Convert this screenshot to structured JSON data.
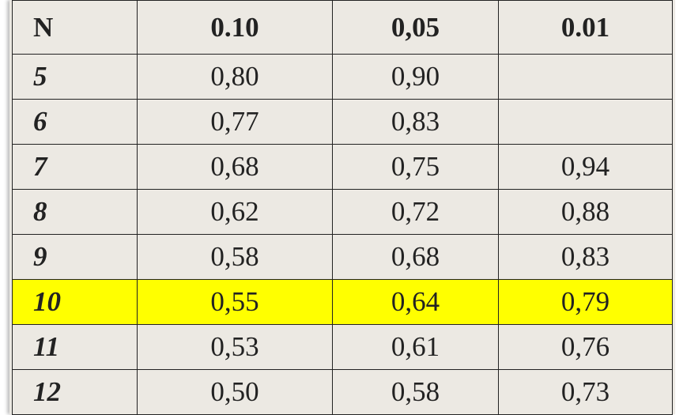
{
  "table": {
    "header": [
      "N",
      "0.10",
      "0,05",
      "0.01"
    ],
    "rows": [
      [
        "5",
        "0,80",
        "0,90",
        null
      ],
      [
        "6",
        "0,77",
        "0,83",
        null
      ],
      [
        "7",
        "0,68",
        "0,75",
        "0,94"
      ],
      [
        "8",
        "0,62",
        "0,72",
        "0,88"
      ],
      [
        "9",
        "0,58",
        "0,68",
        "0,83"
      ],
      [
        "10",
        "0,55",
        "0,64",
        "0,79"
      ],
      [
        "11",
        "0,53",
        "0,61",
        "0,76"
      ],
      [
        "12",
        "0,50",
        "0,58",
        "0,73"
      ]
    ],
    "highlight": {
      "row": 5,
      "color": "#ffff00"
    }
  }
}
